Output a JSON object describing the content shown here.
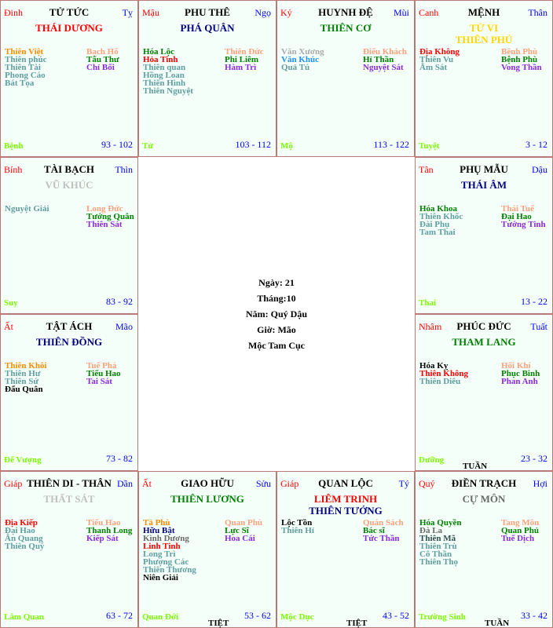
{
  "colors": {
    "can": "#ff0000",
    "chi": "#0000ff",
    "stage": "#7cfc00",
    "range": "#0000ff",
    "border": "#b87878",
    "cell_bg": "#f5fffa"
  },
  "cells": [
    {
      "can": "Đinh",
      "name": "TỬ TỨC",
      "chi": "Tỵ",
      "main": [
        {
          "text": "THÁI DƯƠNG",
          "color": "#ff0000"
        }
      ],
      "left": [
        {
          "text": "Thiên Việt",
          "color": "#ff8c00"
        },
        {
          "text": "Thiên phúc",
          "color": "#5f9ea0"
        },
        {
          "text": "Thiên Tài",
          "color": "#5f9ea0"
        },
        {
          "text": "Phong Cáo",
          "color": "#5f9ea0"
        },
        {
          "text": "Bát Tọa",
          "color": "#5f9ea0"
        }
      ],
      "right": [
        {
          "text": "Bạch Hổ",
          "color": "#ffa07a"
        },
        {
          "text": "Tấu Thư",
          "color": "#008000"
        },
        {
          "text": "Chỉ Bối",
          "color": "#8a2be2"
        }
      ],
      "stage": "Bệnh",
      "range": "93 - 102",
      "marker": ""
    },
    {
      "can": "Mậu",
      "name": "PHU THÊ",
      "chi": "Ngọ",
      "main": [
        {
          "text": "PHÁ QUÂN",
          "color": "#000080"
        }
      ],
      "left": [
        {
          "text": "Hóa Lộc",
          "color": "#008000"
        },
        {
          "text": "Hỏa Tinh",
          "color": "#ff0000"
        },
        {
          "text": "Thiên quan",
          "color": "#5f9ea0"
        },
        {
          "text": "Hồng Loan",
          "color": "#5f9ea0"
        },
        {
          "text": "Thiên Hình",
          "color": "#5f9ea0"
        },
        {
          "text": "Thiên Nguyệt",
          "color": "#5f9ea0"
        }
      ],
      "right": [
        {
          "text": "Thiên Đức",
          "color": "#ffa07a"
        },
        {
          "text": "Phi Liêm",
          "color": "#008000"
        },
        {
          "text": "Hàm Trì",
          "color": "#8a2be2"
        }
      ],
      "stage": "Tử",
      "range": "103 - 112",
      "marker": ""
    },
    {
      "can": "Kỷ",
      "name": "HUYNH ĐỆ",
      "chi": "Mùi",
      "main": [
        {
          "text": "THIÊN CƠ",
          "color": "#008000"
        }
      ],
      "left": [
        {
          "text": "Văn Xương",
          "color": "#a9a9a9"
        },
        {
          "text": "Văn Khúc",
          "color": "#1e90ff"
        },
        {
          "text": "Quả Tú",
          "color": "#5f9ea0"
        }
      ],
      "right": [
        {
          "text": "Điếu Khách",
          "color": "#ffa07a"
        },
        {
          "text": "Hỉ Thần",
          "color": "#008000"
        },
        {
          "text": "Nguyệt Sát",
          "color": "#8a2be2"
        }
      ],
      "stage": "Mộ",
      "range": "113 - 122",
      "marker": ""
    },
    {
      "can": "Canh",
      "name": "MỆNH",
      "chi": "Thân",
      "main": [
        {
          "text": "TỬ VI",
          "color": "#ffd700"
        },
        {
          "text": "THIÊN PHỦ",
          "color": "#ffd700"
        }
      ],
      "left": [
        {
          "text": "Địa Không",
          "color": "#ff0000"
        },
        {
          "text": "Thiên Vu",
          "color": "#5f9ea0"
        },
        {
          "text": "Âm Sát",
          "color": "#5f9ea0"
        }
      ],
      "right": [
        {
          "text": "Bệnh Phù",
          "color": "#ffa07a"
        },
        {
          "text": "Bệnh Phù",
          "color": "#008000"
        },
        {
          "text": "Vong Thần",
          "color": "#8a2be2"
        }
      ],
      "stage": "Tuyệt",
      "range": "3 - 12",
      "marker": ""
    },
    {
      "can": "Bính",
      "name": "TÀI BẠCH",
      "chi": "Thìn",
      "main": [
        {
          "text": "VŨ KHÚC",
          "color": "#c0c0c0"
        }
      ],
      "left": [
        {
          "text": "Nguyệt Giải",
          "color": "#5f9ea0"
        }
      ],
      "right": [
        {
          "text": "Long Đức",
          "color": "#ffa07a"
        },
        {
          "text": "Tướng Quân",
          "color": "#008000"
        },
        {
          "text": "Thiên Sát",
          "color": "#8a2be2"
        }
      ],
      "stage": "Suy",
      "range": "83 - 92",
      "marker": ""
    },
    {
      "can": "Tân",
      "name": "PHỤ MẪU",
      "chi": "Dậu",
      "main": [
        {
          "text": "THÁI ÂM",
          "color": "#000080"
        }
      ],
      "left": [
        {
          "text": "Hóa Khoa",
          "color": "#008000"
        },
        {
          "text": "Thiên Khốc",
          "color": "#5f9ea0"
        },
        {
          "text": "Đài Phụ",
          "color": "#5f9ea0"
        },
        {
          "text": "Tam Thai",
          "color": "#5f9ea0"
        }
      ],
      "right": [
        {
          "text": "Thái Tuế",
          "color": "#ffa07a"
        },
        {
          "text": "Đại Hao",
          "color": "#008000"
        },
        {
          "text": "Tướng Tinh",
          "color": "#8a2be2"
        }
      ],
      "stage": "Thai",
      "range": "13 - 22",
      "marker": ""
    },
    {
      "can": "Ất",
      "name": "TẬT ÁCH",
      "chi": "Mão",
      "main": [
        {
          "text": "THIÊN ĐỒNG",
          "color": "#000080"
        }
      ],
      "left": [
        {
          "text": "Thiên Khôi",
          "color": "#ff8c00"
        },
        {
          "text": "Thiên Hư",
          "color": "#5f9ea0"
        },
        {
          "text": "Thiên Sứ",
          "color": "#5f9ea0"
        },
        {
          "text": "Đẩu Quân",
          "color": "#000000"
        }
      ],
      "right": [
        {
          "text": "Tuế Phá",
          "color": "#ffa07a"
        },
        {
          "text": "Tiểu Hao",
          "color": "#008000"
        },
        {
          "text": "Tai Sát",
          "color": "#8a2be2"
        }
      ],
      "stage": "Đế Vượng",
      "range": "73 - 82",
      "marker": ""
    },
    {
      "can": "Nhâm",
      "name": "PHÚC ĐỨC",
      "chi": "Tuất",
      "main": [
        {
          "text": "THAM LANG",
          "color": "#008000"
        }
      ],
      "left": [
        {
          "text": "Hóa Kỵ",
          "color": "#000000"
        },
        {
          "text": "Thiên Không",
          "color": "#ff0000"
        },
        {
          "text": "Thiên Diêu",
          "color": "#5f9ea0"
        }
      ],
      "right": [
        {
          "text": "Hối Khí",
          "color": "#ffa07a"
        },
        {
          "text": "Phục Binh",
          "color": "#008000"
        },
        {
          "text": "Phan Anh",
          "color": "#8a2be2"
        }
      ],
      "stage": "Dưỡng",
      "range": "23 - 32",
      "marker": "TUẦN"
    },
    {
      "can": "Giáp",
      "name": "THIÊN DI - THÂN",
      "chi": "Dần",
      "main": [
        {
          "text": "THẤT SÁT",
          "color": "#c0c0c0"
        }
      ],
      "left": [
        {
          "text": "Địa Kiếp",
          "color": "#ff0000"
        },
        {
          "text": "Đại Hao",
          "color": "#5f9ea0"
        },
        {
          "text": "Ân Quang",
          "color": "#5f9ea0"
        },
        {
          "text": "Thiên Quý",
          "color": "#5f9ea0"
        }
      ],
      "right": [
        {
          "text": "Tiểu Hao",
          "color": "#ffa07a"
        },
        {
          "text": "Thanh Long",
          "color": "#008000"
        },
        {
          "text": "Kiếp Sát",
          "color": "#8a2be2"
        }
      ],
      "stage": "Lâm Quan",
      "range": "63 - 72",
      "marker": ""
    },
    {
      "can": "Ất",
      "name": "GIAO HỮU",
      "chi": "Sửu",
      "main": [
        {
          "text": "THIÊN LƯƠNG",
          "color": "#008000"
        }
      ],
      "left": [
        {
          "text": "Tả Phù",
          "color": "#ff8c00"
        },
        {
          "text": "Hữu Bật",
          "color": "#000080"
        },
        {
          "text": "Kình Dương",
          "color": "#696969"
        },
        {
          "text": "Linh Tinh",
          "color": "#ff0000"
        },
        {
          "text": "Long Trì",
          "color": "#5f9ea0"
        },
        {
          "text": "Phượng Các",
          "color": "#5f9ea0"
        },
        {
          "text": "Thiên Thương",
          "color": "#5f9ea0"
        },
        {
          "text": "Niên Giải",
          "color": "#000000"
        }
      ],
      "right": [
        {
          "text": "Quan Phù",
          "color": "#ffa07a"
        },
        {
          "text": "Lực Sĩ",
          "color": "#008000"
        },
        {
          "text": "Hoa Cái",
          "color": "#8a2be2"
        }
      ],
      "stage": "Quan Đới",
      "range": "53 - 62",
      "marker": "TIỆT"
    },
    {
      "can": "Giáp",
      "name": "QUAN LỘC",
      "chi": "Tý",
      "main": [
        {
          "text": "LIÊM TRINH",
          "color": "#ff0000"
        },
        {
          "text": "THIÊN TƯỚNG",
          "color": "#000080"
        }
      ],
      "left": [
        {
          "text": "Lộc Tồn",
          "color": "#000000"
        },
        {
          "text": "Thiên Hỉ",
          "color": "#5f9ea0"
        }
      ],
      "right": [
        {
          "text": "Quán Sách",
          "color": "#ffa07a"
        },
        {
          "text": "Bác sĩ",
          "color": "#008000"
        },
        {
          "text": "Tức Thần",
          "color": "#8a2be2"
        }
      ],
      "stage": "Mộc Dục",
      "range": "43 - 52",
      "marker": "TIỆT"
    },
    {
      "can": "Quý",
      "name": "ĐIỀN TRẠCH",
      "chi": "Hợi",
      "main": [
        {
          "text": "CỰ MÔN",
          "color": "#696969"
        }
      ],
      "left": [
        {
          "text": "Hóa Quyền",
          "color": "#008000"
        },
        {
          "text": "Đà La",
          "color": "#696969"
        },
        {
          "text": "Thiên Mã",
          "color": "#2f4f4f"
        },
        {
          "text": "Thiên Trù",
          "color": "#5f9ea0"
        },
        {
          "text": "Cô Thần",
          "color": "#5f9ea0"
        },
        {
          "text": "Thiên Thọ",
          "color": "#5f9ea0"
        }
      ],
      "right": [
        {
          "text": "Tang Môn",
          "color": "#ffa07a"
        },
        {
          "text": "Quan Phủ",
          "color": "#008000"
        },
        {
          "text": "Tuế Dịch",
          "color": "#8a2be2"
        }
      ],
      "stage": "Trường Sinh",
      "range": "33 - 42",
      "marker": "TUẦN"
    }
  ],
  "center": {
    "day": "Ngày: 21",
    "month": "Tháng:10",
    "year": "Năm: Quý Dậu",
    "hour": "Giờ: Mão",
    "cuc": "Mộc Tam Cục"
  }
}
